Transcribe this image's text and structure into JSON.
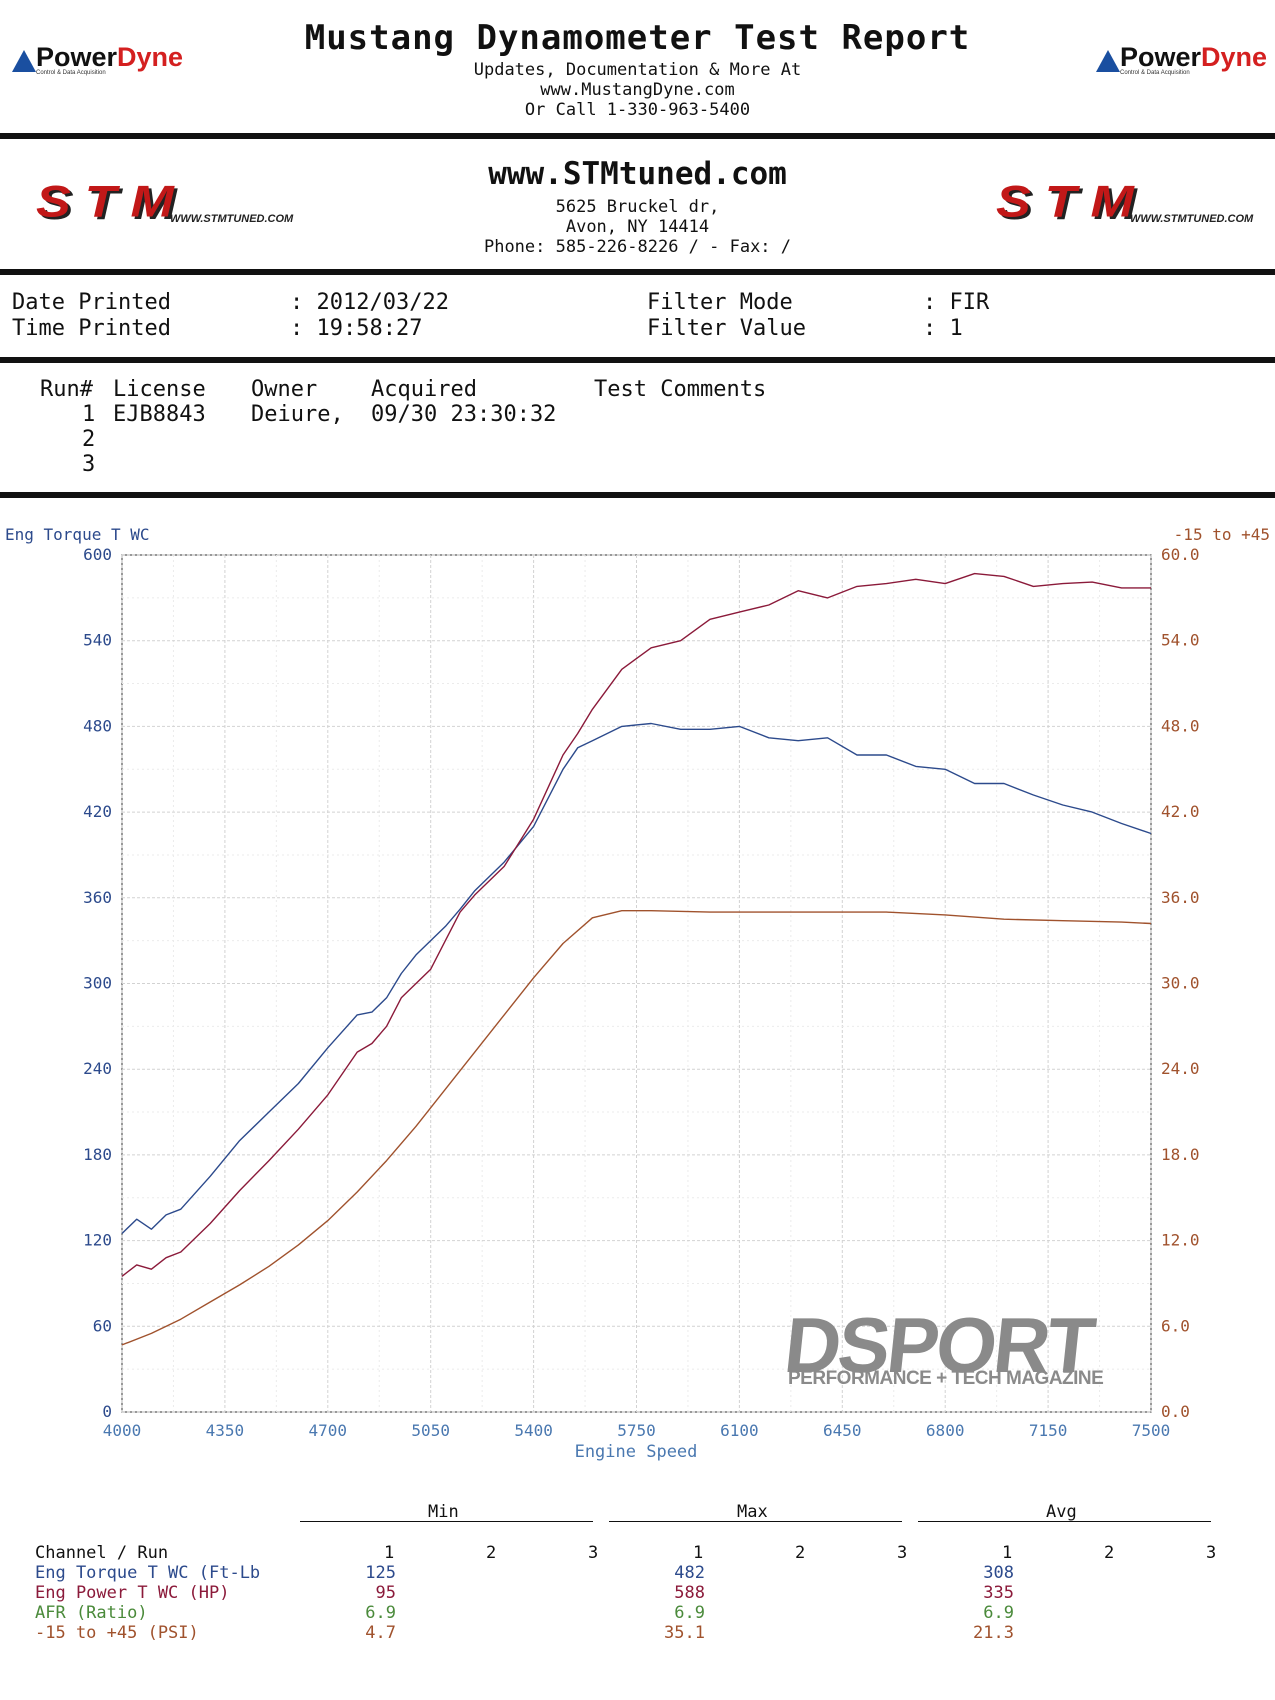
{
  "header": {
    "title": "Mustang Dynamometer Test Report",
    "line1": "Updates, Documentation & More At",
    "line2": "www.MustangDyne.com",
    "line3": "Or Call 1-330-963-5400",
    "logo_power": "Power",
    "logo_dyne": "Dyne",
    "logo_tag": "Control & Data Acquisition"
  },
  "shop": {
    "site": "www.STMtuned.com",
    "address1": "5625 Bruckel dr,",
    "address2": "Avon, NY  14414",
    "phone": "Phone: 585-226-8226 /  - Fax:  /",
    "logo_text": "STM",
    "logo_url": "WWW.STMTUNED.COM"
  },
  "print_info": {
    "date_label": "Date Printed",
    "date_value": ": 2012/03/22",
    "time_label": "Time Printed",
    "time_value": ": 19:58:27",
    "filter_mode_label": "Filter Mode",
    "filter_mode_value": ": FIR",
    "filter_value_label": "Filter Value",
    "filter_value_value": ": 1"
  },
  "runs": {
    "headers": [
      "Run#",
      "License",
      "Owner",
      "Acquired",
      "Test Comments"
    ],
    "rows": [
      {
        "run": "1",
        "license": "EJB8843",
        "owner": "Deiure,",
        "acquired": "09/30 23:30:32",
        "comments": ""
      },
      {
        "run": "2",
        "license": "",
        "owner": "",
        "acquired": "",
        "comments": ""
      },
      {
        "run": "3",
        "license": "",
        "owner": "",
        "acquired": "",
        "comments": ""
      }
    ]
  },
  "chart_data": {
    "type": "line",
    "xlabel": "Engine Speed",
    "ylabel_left": "Eng Torque T WC",
    "ylabel_right": "-15 to +45",
    "xlim": [
      4000,
      7500
    ],
    "xticks": [
      "4000",
      "4350",
      "4700",
      "5050",
      "5400",
      "5750",
      "6100",
      "6450",
      "6800",
      "7150",
      "7500"
    ],
    "ylim_left": [
      0,
      600
    ],
    "yticks_left": [
      "0",
      "60",
      "120",
      "180",
      "240",
      "300",
      "360",
      "420",
      "480",
      "540",
      "600"
    ],
    "ylim_right": [
      0,
      60
    ],
    "yticks_right": [
      "0.0",
      "6.0",
      "12.0",
      "18.0",
      "24.0",
      "30.0",
      "36.0",
      "42.0",
      "48.0",
      "54.0",
      "60.0"
    ],
    "grid": true,
    "colors": {
      "torque": "#2c4a8c",
      "power": "#8b1a3a",
      "boost": "#a0522d",
      "afr": "#4a8a3a",
      "left_axis": "#2c4a8c",
      "right_axis": "#a0522d"
    },
    "series": [
      {
        "key": "torque",
        "axis": "left",
        "x": [
          4000,
          4050,
          4100,
          4150,
          4200,
          4300,
          4400,
          4500,
          4600,
          4700,
          4800,
          4850,
          4900,
          4950,
          5000,
          5050,
          5100,
          5150,
          5200,
          5300,
          5400,
          5500,
          5550,
          5600,
          5700,
          5800,
          5900,
          6000,
          6100,
          6200,
          6300,
          6400,
          6500,
          6600,
          6700,
          6800,
          6900,
          7000,
          7100,
          7200,
          7300,
          7400,
          7500
        ],
        "y": [
          125,
          135,
          128,
          138,
          142,
          165,
          190,
          210,
          230,
          255,
          278,
          280,
          290,
          307,
          320,
          330,
          340,
          352,
          365,
          385,
          410,
          450,
          465,
          470,
          480,
          482,
          478,
          478,
          480,
          472,
          470,
          472,
          460,
          460,
          452,
          450,
          440,
          440,
          432,
          425,
          420,
          412,
          405
        ]
      },
      {
        "key": "power",
        "axis": "left",
        "x": [
          4000,
          4050,
          4100,
          4150,
          4200,
          4300,
          4400,
          4500,
          4600,
          4700,
          4800,
          4850,
          4900,
          4950,
          5000,
          5050,
          5100,
          5150,
          5200,
          5300,
          5400,
          5500,
          5550,
          5600,
          5700,
          5800,
          5900,
          6000,
          6100,
          6200,
          6300,
          6400,
          6500,
          6600,
          6700,
          6800,
          6900,
          7000,
          7100,
          7200,
          7300,
          7400,
          7500
        ],
        "y": [
          95,
          103,
          100,
          108,
          112,
          132,
          155,
          176,
          198,
          222,
          252,
          258,
          270,
          290,
          300,
          310,
          330,
          350,
          362,
          382,
          415,
          460,
          475,
          492,
          520,
          535,
          540,
          555,
          560,
          565,
          575,
          570,
          578,
          580,
          583,
          580,
          587,
          585,
          578,
          580,
          581,
          577,
          577
        ]
      },
      {
        "key": "boost",
        "axis": "right",
        "x": [
          4000,
          4100,
          4200,
          4300,
          4400,
          4500,
          4600,
          4700,
          4800,
          4900,
          5000,
          5100,
          5200,
          5300,
          5400,
          5500,
          5600,
          5700,
          5800,
          6000,
          6200,
          6400,
          6600,
          6800,
          7000,
          7200,
          7400,
          7500
        ],
        "y": [
          4.7,
          5.5,
          6.5,
          7.7,
          8.9,
          10.2,
          11.7,
          13.4,
          15.4,
          17.6,
          20.0,
          22.6,
          25.2,
          27.8,
          30.4,
          32.8,
          34.6,
          35.1,
          35.1,
          35.0,
          35.0,
          35.0,
          35.0,
          34.8,
          34.5,
          34.4,
          34.3,
          34.2
        ]
      }
    ]
  },
  "watermark": {
    "brand": "DSPORT",
    "tagline": "PERFORMANCE + TECH MAGAZINE"
  },
  "stats": {
    "group_min": "Min",
    "group_max": "Max",
    "group_avg": "Avg",
    "channel_header": "Channel / Run",
    "run_cols": [
      "1",
      "2",
      "3"
    ],
    "rows": [
      {
        "label": "Eng Torque T WC (Ft-Lb",
        "min": "125",
        "max": "482",
        "avg": "308",
        "color": "#2c4a8c"
      },
      {
        "label": "Eng Power T WC (HP)",
        "min": "95",
        "max": "588",
        "avg": "335",
        "color": "#8b1a3a"
      },
      {
        "label": "AFR (Ratio)",
        "min": "6.9",
        "max": "6.9",
        "avg": "6.9",
        "color": "#4a8a3a"
      },
      {
        "label": "-15 to +45 (PSI)",
        "min": "4.7",
        "max": "35.1",
        "avg": "21.3",
        "color": "#a0522d"
      }
    ]
  }
}
